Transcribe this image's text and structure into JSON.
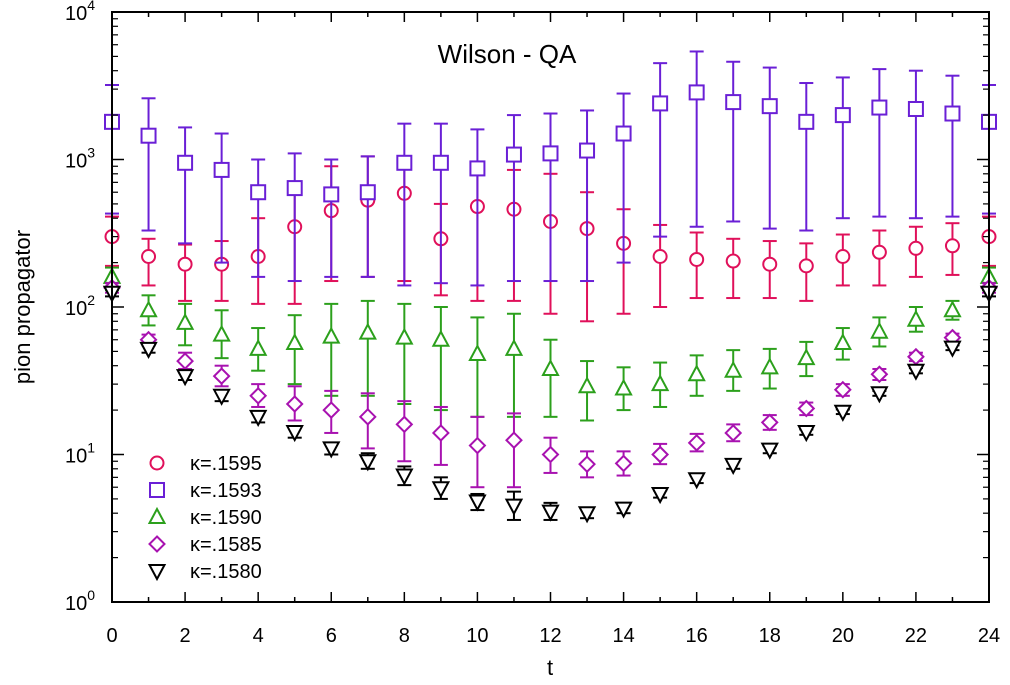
{
  "chart_data": {
    "type": "scatter",
    "title": "Wilson - QA",
    "xlabel": "t",
    "ylabel": "pion propagator",
    "xlim": [
      0,
      24
    ],
    "ylim": [
      1,
      10000
    ],
    "yscale": "log",
    "x_ticks": [
      "0",
      "2",
      "4",
      "6",
      "8",
      "10",
      "12",
      "14",
      "16",
      "18",
      "20",
      "22",
      "24"
    ],
    "y_ticks": [
      {
        "base": "10",
        "exp": "0"
      },
      {
        "base": "10",
        "exp": "1"
      },
      {
        "base": "10",
        "exp": "2"
      },
      {
        "base": "10",
        "exp": "3"
      },
      {
        "base": "10",
        "exp": "4"
      }
    ],
    "legend_position": "bottom-left",
    "grid": false,
    "series": [
      {
        "name": "κ=.1595",
        "color": "#e0105a",
        "marker": "circle",
        "points": [
          {
            "x": 0,
            "y": 300,
            "lo": 190,
            "hi": 410
          },
          {
            "x": 1,
            "y": 220,
            "lo": 140,
            "hi": 290
          },
          {
            "x": 2,
            "y": 195,
            "lo": 110,
            "hi": 265
          },
          {
            "x": 3,
            "y": 195,
            "lo": 110,
            "hi": 280
          },
          {
            "x": 4,
            "y": 220,
            "lo": 105,
            "hi": 400
          },
          {
            "x": 5,
            "y": 350,
            "lo": 105,
            "hi": 700
          },
          {
            "x": 6,
            "y": 450,
            "lo": 150,
            "hi": 900
          },
          {
            "x": 7,
            "y": 530,
            "lo": 160,
            "hi": 1050
          },
          {
            "x": 8,
            "y": 590,
            "lo": 150,
            "hi": 1000
          },
          {
            "x": 9,
            "y": 290,
            "lo": 120,
            "hi": 500
          },
          {
            "x": 10,
            "y": 480,
            "lo": 110,
            "hi": 900
          },
          {
            "x": 11,
            "y": 460,
            "lo": 110,
            "hi": 850
          },
          {
            "x": 12,
            "y": 380,
            "lo": 90,
            "hi": 800
          },
          {
            "x": 13,
            "y": 340,
            "lo": 80,
            "hi": 600
          },
          {
            "x": 14,
            "y": 270,
            "lo": 90,
            "hi": 460
          },
          {
            "x": 15,
            "y": 220,
            "lo": 100,
            "hi": 360
          },
          {
            "x": 16,
            "y": 210,
            "lo": 115,
            "hi": 320
          },
          {
            "x": 17,
            "y": 205,
            "lo": 115,
            "hi": 290
          },
          {
            "x": 18,
            "y": 195,
            "lo": 115,
            "hi": 280
          },
          {
            "x": 19,
            "y": 190,
            "lo": 110,
            "hi": 270
          },
          {
            "x": 20,
            "y": 220,
            "lo": 140,
            "hi": 310
          },
          {
            "x": 21,
            "y": 235,
            "lo": 140,
            "hi": 330
          },
          {
            "x": 22,
            "y": 250,
            "lo": 160,
            "hi": 350
          },
          {
            "x": 23,
            "y": 260,
            "lo": 165,
            "hi": 370
          },
          {
            "x": 24,
            "y": 300,
            "lo": 190,
            "hi": 410
          }
        ]
      },
      {
        "name": "κ=.1593",
        "color": "#6a1fd6",
        "marker": "square",
        "points": [
          {
            "x": 0,
            "y": 1800,
            "lo": 430,
            "hi": 3200
          },
          {
            "x": 1,
            "y": 1450,
            "lo": 330,
            "hi": 2600
          },
          {
            "x": 2,
            "y": 950,
            "lo": 270,
            "hi": 1650
          },
          {
            "x": 3,
            "y": 850,
            "lo": 200,
            "hi": 1500
          },
          {
            "x": 4,
            "y": 600,
            "lo": 160,
            "hi": 1000
          },
          {
            "x": 5,
            "y": 640,
            "lo": 150,
            "hi": 1100
          },
          {
            "x": 6,
            "y": 580,
            "lo": 160,
            "hi": 1000
          },
          {
            "x": 7,
            "y": 600,
            "lo": 160,
            "hi": 1050
          },
          {
            "x": 8,
            "y": 950,
            "lo": 140,
            "hi": 1750
          },
          {
            "x": 9,
            "y": 950,
            "lo": 145,
            "hi": 1750
          },
          {
            "x": 10,
            "y": 870,
            "lo": 140,
            "hi": 1600
          },
          {
            "x": 11,
            "y": 1080,
            "lo": 150,
            "hi": 2000
          },
          {
            "x": 12,
            "y": 1100,
            "lo": 150,
            "hi": 2050
          },
          {
            "x": 13,
            "y": 1150,
            "lo": 150,
            "hi": 2150
          },
          {
            "x": 14,
            "y": 1500,
            "lo": 200,
            "hi": 2800
          },
          {
            "x": 15,
            "y": 2400,
            "lo": 300,
            "hi": 4500
          },
          {
            "x": 16,
            "y": 2850,
            "lo": 350,
            "hi": 5400
          },
          {
            "x": 17,
            "y": 2450,
            "lo": 380,
            "hi": 4600
          },
          {
            "x": 18,
            "y": 2300,
            "lo": 340,
            "hi": 4200
          },
          {
            "x": 19,
            "y": 1800,
            "lo": 330,
            "hi": 3300
          },
          {
            "x": 20,
            "y": 2000,
            "lo": 400,
            "hi": 3600
          },
          {
            "x": 21,
            "y": 2250,
            "lo": 410,
            "hi": 4100
          },
          {
            "x": 22,
            "y": 2200,
            "lo": 400,
            "hi": 4000
          },
          {
            "x": 23,
            "y": 2050,
            "lo": 410,
            "hi": 3700
          },
          {
            "x": 24,
            "y": 1800,
            "lo": 430,
            "hi": 3200
          }
        ]
      },
      {
        "name": "κ=.1590",
        "color": "#2ca01c",
        "marker": "triangle-up",
        "points": [
          {
            "x": 0,
            "y": 160,
            "lo": 130,
            "hi": 185
          },
          {
            "x": 1,
            "y": 95,
            "lo": 75,
            "hi": 120
          },
          {
            "x": 2,
            "y": 78,
            "lo": 55,
            "hi": 105
          },
          {
            "x": 3,
            "y": 65,
            "lo": 45,
            "hi": 95
          },
          {
            "x": 4,
            "y": 52,
            "lo": 37,
            "hi": 72
          },
          {
            "x": 5,
            "y": 57,
            "lo": 30,
            "hi": 88
          },
          {
            "x": 6,
            "y": 63,
            "lo": 25,
            "hi": 105
          },
          {
            "x": 7,
            "y": 67,
            "lo": 25,
            "hi": 110
          },
          {
            "x": 8,
            "y": 62,
            "lo": 22,
            "hi": 105
          },
          {
            "x": 9,
            "y": 60,
            "lo": 20,
            "hi": 100
          },
          {
            "x": 10,
            "y": 48,
            "lo": 18,
            "hi": 85
          },
          {
            "x": 11,
            "y": 52,
            "lo": 18,
            "hi": 90
          },
          {
            "x": 12,
            "y": 38,
            "lo": 18,
            "hi": 60
          },
          {
            "x": 13,
            "y": 29,
            "lo": 17,
            "hi": 43
          },
          {
            "x": 14,
            "y": 28,
            "lo": 20,
            "hi": 39
          },
          {
            "x": 15,
            "y": 30,
            "lo": 21,
            "hi": 42
          },
          {
            "x": 16,
            "y": 35,
            "lo": 25,
            "hi": 47
          },
          {
            "x": 17,
            "y": 37,
            "lo": 27,
            "hi": 51
          },
          {
            "x": 18,
            "y": 39,
            "lo": 28,
            "hi": 52
          },
          {
            "x": 19,
            "y": 45,
            "lo": 34,
            "hi": 58
          },
          {
            "x": 20,
            "y": 57,
            "lo": 44,
            "hi": 72
          },
          {
            "x": 21,
            "y": 68,
            "lo": 54,
            "hi": 85
          },
          {
            "x": 22,
            "y": 82,
            "lo": 68,
            "hi": 100
          },
          {
            "x": 23,
            "y": 95,
            "lo": 82,
            "hi": 110
          },
          {
            "x": 24,
            "y": 160,
            "lo": 130,
            "hi": 185
          }
        ]
      },
      {
        "name": "κ=.1585",
        "color": "#a812b0",
        "marker": "diamond",
        "points": [
          {
            "x": 0,
            "y": 135,
            "lo": 125,
            "hi": 145
          },
          {
            "x": 1,
            "y": 60,
            "lo": 55,
            "hi": 65
          },
          {
            "x": 2,
            "y": 43,
            "lo": 38,
            "hi": 49
          },
          {
            "x": 3,
            "y": 34,
            "lo": 29,
            "hi": 40
          },
          {
            "x": 4,
            "y": 25,
            "lo": 21,
            "hi": 30
          },
          {
            "x": 5,
            "y": 22,
            "lo": 17,
            "hi": 29
          },
          {
            "x": 6,
            "y": 20,
            "lo": 14,
            "hi": 27
          },
          {
            "x": 7,
            "y": 18,
            "lo": 11,
            "hi": 26
          },
          {
            "x": 8,
            "y": 16,
            "lo": 9,
            "hi": 23
          },
          {
            "x": 9,
            "y": 14,
            "lo": 8.5,
            "hi": 21
          },
          {
            "x": 10,
            "y": 11.5,
            "lo": 6,
            "hi": 18
          },
          {
            "x": 11,
            "y": 12.5,
            "lo": 6,
            "hi": 19
          },
          {
            "x": 12,
            "y": 10,
            "lo": 7.5,
            "hi": 13
          },
          {
            "x": 13,
            "y": 8.6,
            "lo": 7,
            "hi": 10.5
          },
          {
            "x": 14,
            "y": 8.7,
            "lo": 7.2,
            "hi": 10.5
          },
          {
            "x": 15,
            "y": 10,
            "lo": 8.6,
            "hi": 11.8
          },
          {
            "x": 16,
            "y": 12,
            "lo": 10.5,
            "hi": 13.8
          },
          {
            "x": 17,
            "y": 14,
            "lo": 12.3,
            "hi": 16
          },
          {
            "x": 18,
            "y": 16.5,
            "lo": 14.7,
            "hi": 18.5
          },
          {
            "x": 19,
            "y": 20.5,
            "lo": 18.5,
            "hi": 22.5
          },
          {
            "x": 20,
            "y": 27.5,
            "lo": 25,
            "hi": 30
          },
          {
            "x": 21,
            "y": 35,
            "lo": 32,
            "hi": 38
          },
          {
            "x": 22,
            "y": 46,
            "lo": 43,
            "hi": 49
          },
          {
            "x": 23,
            "y": 62,
            "lo": 58,
            "hi": 66
          },
          {
            "x": 24,
            "y": 135,
            "lo": 125,
            "hi": 145
          }
        ]
      },
      {
        "name": "κ=.1580",
        "color": "#000000",
        "marker": "triangle-down",
        "points": [
          {
            "x": 0,
            "y": 125,
            "lo": 118,
            "hi": 132
          },
          {
            "x": 1,
            "y": 52,
            "lo": 49,
            "hi": 55
          },
          {
            "x": 2,
            "y": 34,
            "lo": 32,
            "hi": 36
          },
          {
            "x": 3,
            "y": 25,
            "lo": 23,
            "hi": 27
          },
          {
            "x": 4,
            "y": 18,
            "lo": 16.5,
            "hi": 19.5
          },
          {
            "x": 5,
            "y": 14.2,
            "lo": 13,
            "hi": 15.5
          },
          {
            "x": 6,
            "y": 11,
            "lo": 10,
            "hi": 12
          },
          {
            "x": 7,
            "y": 9,
            "lo": 8,
            "hi": 10.2
          },
          {
            "x": 8,
            "y": 7.2,
            "lo": 6.2,
            "hi": 8.3
          },
          {
            "x": 9,
            "y": 5.9,
            "lo": 5,
            "hi": 7
          },
          {
            "x": 10,
            "y": 4.8,
            "lo": 4.2,
            "hi": 5.4
          },
          {
            "x": 11,
            "y": 4.5,
            "lo": 3.6,
            "hi": 5.6
          },
          {
            "x": 12,
            "y": 4.1,
            "lo": 3.6,
            "hi": 4.7
          },
          {
            "x": 13,
            "y": 4.0,
            "lo": 3.7,
            "hi": 4.3
          },
          {
            "x": 14,
            "y": 4.3,
            "lo": 4.0,
            "hi": 4.6
          },
          {
            "x": 15,
            "y": 5.4,
            "lo": 5.1,
            "hi": 5.7
          },
          {
            "x": 16,
            "y": 6.8,
            "lo": 6.4,
            "hi": 7.2
          },
          {
            "x": 17,
            "y": 8.5,
            "lo": 8.0,
            "hi": 9.0
          },
          {
            "x": 18,
            "y": 10.8,
            "lo": 10.2,
            "hi": 11.4
          },
          {
            "x": 19,
            "y": 14.2,
            "lo": 13.6,
            "hi": 14.8
          },
          {
            "x": 20,
            "y": 19.5,
            "lo": 18.8,
            "hi": 20.2
          },
          {
            "x": 21,
            "y": 26,
            "lo": 25,
            "hi": 27
          },
          {
            "x": 22,
            "y": 37,
            "lo": 35.5,
            "hi": 38.5
          },
          {
            "x": 23,
            "y": 53,
            "lo": 51,
            "hi": 55
          },
          {
            "x": 24,
            "y": 125,
            "lo": 118,
            "hi": 132
          }
        ]
      }
    ]
  }
}
